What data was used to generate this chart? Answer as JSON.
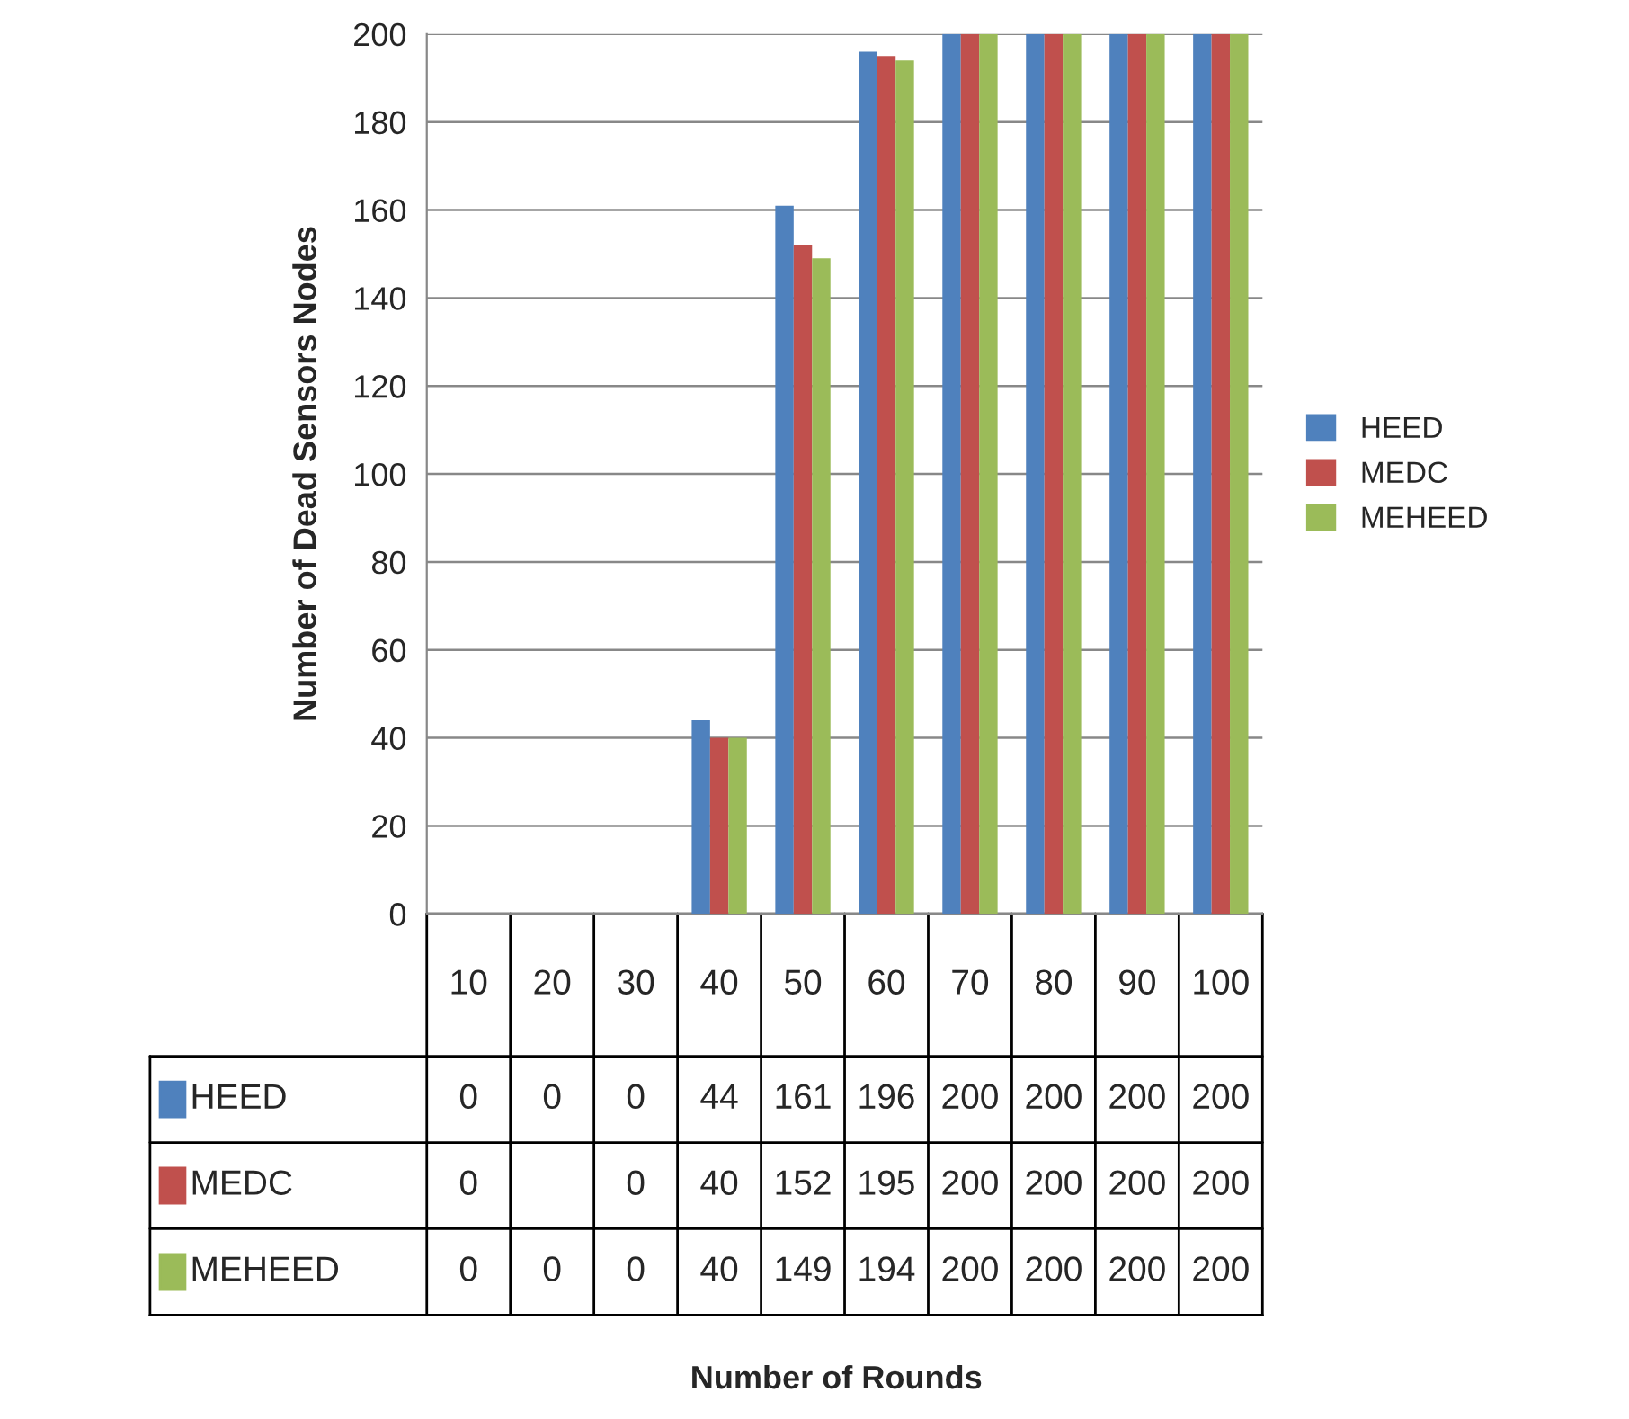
{
  "chart_data": {
    "type": "bar",
    "annotations": [
      "Number of Rounds"
    ],
    "ylabel": "Number of Dead Sensors Nodes",
    "categories": [
      "10",
      "20",
      "30",
      "40",
      "50",
      "60",
      "70",
      "80",
      "90",
      "100"
    ],
    "series": [
      {
        "name": "HEED",
        "color": "#4f81bd",
        "values": [
          0,
          0,
          0,
          44,
          161,
          196,
          200,
          200,
          200,
          200
        ],
        "value_labels": [
          "0",
          "0",
          "0",
          "44",
          "161",
          "196",
          "200",
          "200",
          "200",
          "200"
        ]
      },
      {
        "name": "MEDC",
        "color": "#c0504d",
        "values": [
          0,
          null,
          0,
          40,
          152,
          195,
          200,
          200,
          200,
          200
        ],
        "value_labels": [
          "0",
          null,
          "0",
          "40",
          "152",
          "195",
          "200",
          "200",
          "200",
          "200"
        ]
      },
      {
        "name": "MEHEED",
        "color": "#9bbb59",
        "values": [
          0,
          0,
          0,
          40,
          149,
          194,
          200,
          200,
          200,
          200
        ],
        "value_labels": [
          "0",
          "0",
          "0",
          "40",
          "149",
          "194",
          "200",
          "200",
          "200",
          "200"
        ]
      }
    ],
    "ylim": [
      0,
      200
    ],
    "yticks": [
      0,
      20,
      40,
      60,
      80,
      100,
      120,
      140,
      160,
      180,
      200
    ],
    "grid": "y",
    "legend": "right"
  }
}
